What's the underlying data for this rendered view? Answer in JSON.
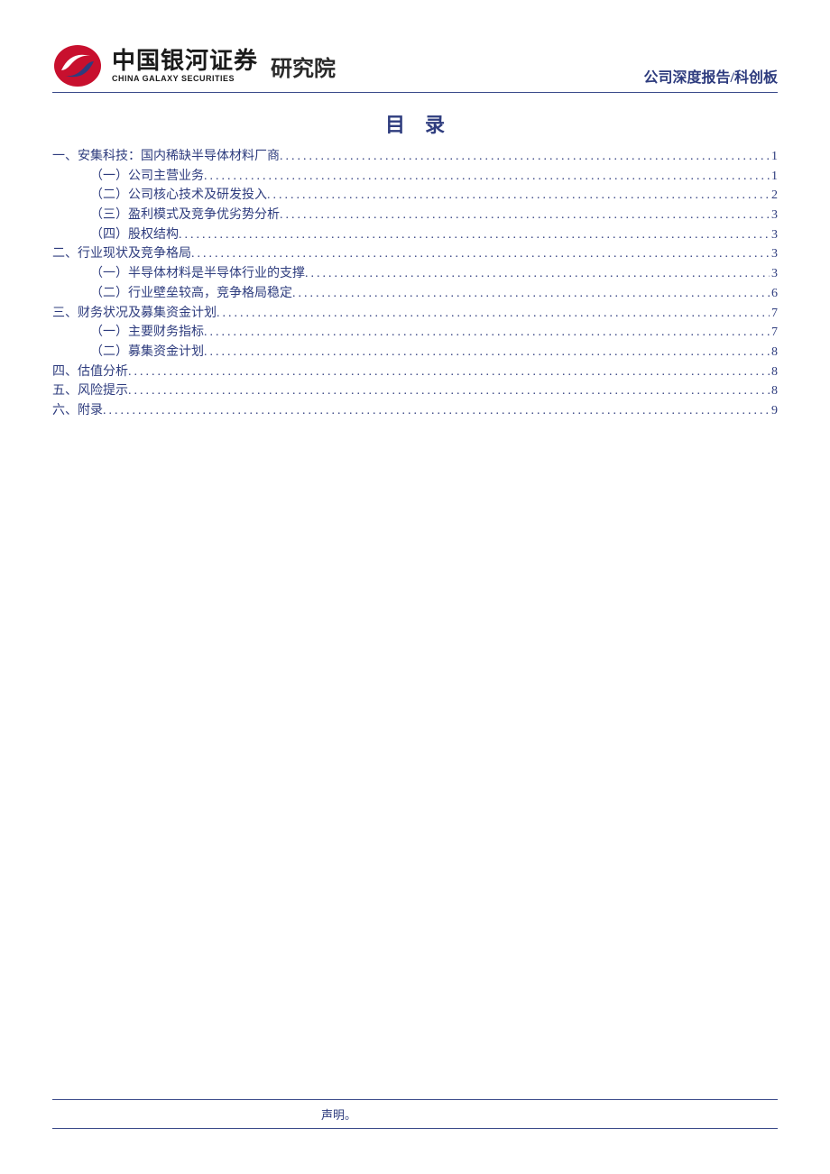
{
  "header": {
    "logo_cn": "中国银河证券",
    "logo_en": "CHINA GALAXY SECURITIES",
    "department": "研究院",
    "doc_type": "公司深度报告/科创板",
    "logo_colors": {
      "red": "#c8102e",
      "blue": "#2e3c7e"
    }
  },
  "toc_title": "目录",
  "colors": {
    "primary": "#2e3c7e",
    "rule": "#3a4a8a",
    "text_black": "#1a1a1a",
    "background": "#ffffff"
  },
  "typography": {
    "body_family": "SimSun",
    "heading_family": "SimHei",
    "kaiti_family": "KaiTi",
    "toc_fontsize": 14,
    "title_fontsize": 22
  },
  "toc": [
    {
      "level": 1,
      "label": "一、安集科技：国内稀缺半导体材料厂商",
      "page": "1"
    },
    {
      "level": 2,
      "label": "（一）公司主营业务",
      "page": "1"
    },
    {
      "level": 2,
      "label": "（二）公司核心技术及研发投入",
      "page": "2"
    },
    {
      "level": 2,
      "label": "（三）盈利模式及竞争优劣势分析",
      "page": "3"
    },
    {
      "level": 2,
      "label": "（四）股权结构",
      "page": "3"
    },
    {
      "level": 1,
      "label": "二、行业现状及竞争格局",
      "page": "3"
    },
    {
      "level": 2,
      "label": "（一）半导体材料是半导体行业的支撑",
      "page": "3"
    },
    {
      "level": 2,
      "label": "（二）行业壁垒较高，竞争格局稳定",
      "page": "6"
    },
    {
      "level": 1,
      "label": "三、财务状况及募集资金计划",
      "page": "7"
    },
    {
      "level": 2,
      "label": "（一）主要财务指标",
      "page": "7"
    },
    {
      "level": 2,
      "label": "（二）募集资金计划",
      "page": "8"
    },
    {
      "level": 1,
      "label": "四、估值分析",
      "page": "8"
    },
    {
      "level": 1,
      "label": "五、风险提示",
      "page": "8"
    },
    {
      "level": 1,
      "label": "六、附录",
      "page": "9"
    }
  ],
  "footer": {
    "disclaimer": "声明。"
  }
}
